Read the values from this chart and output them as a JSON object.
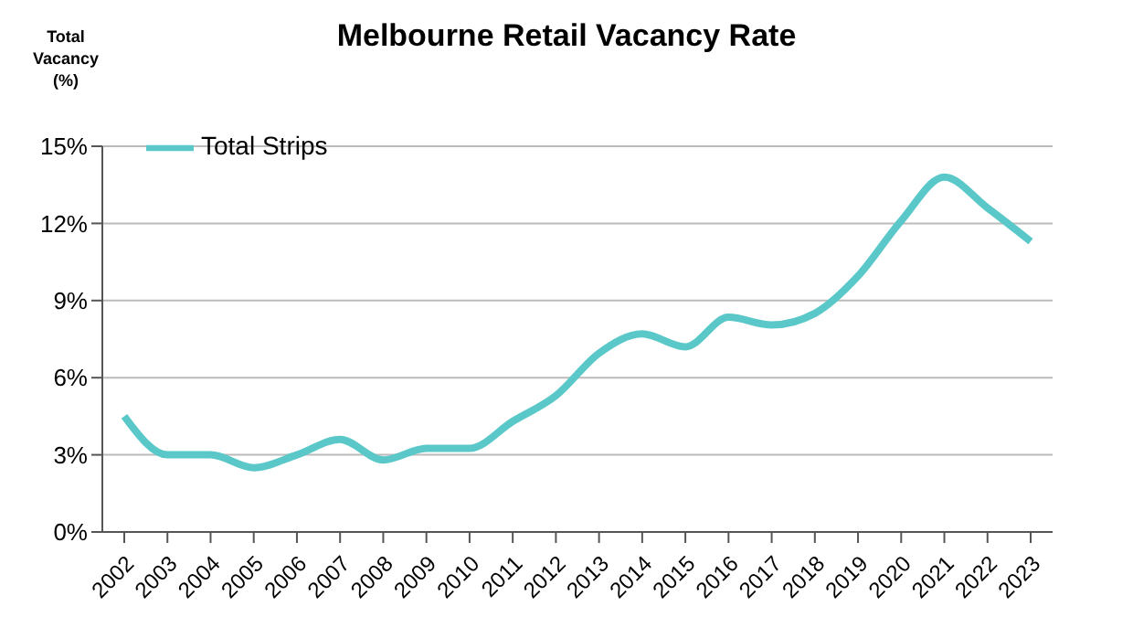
{
  "chart_data": {
    "type": "line",
    "title": "Melbourne Retail Vacancy Rate",
    "ylabel": "Total Vacancy (%)",
    "categories": [
      "2002",
      "2003",
      "2004",
      "2005",
      "2006",
      "2007",
      "2008",
      "2009",
      "2010",
      "2011",
      "2012",
      "2013",
      "2014",
      "2015",
      "2016",
      "2017",
      "2018",
      "2019",
      "2020",
      "2021",
      "2022",
      "2023"
    ],
    "series": [
      {
        "name": "Total Strips",
        "color": "#5ac8c8",
        "values": [
          4.5,
          3.0,
          3.0,
          2.5,
          3.0,
          3.6,
          2.8,
          3.25,
          3.25,
          4.3,
          5.3,
          6.95,
          7.7,
          7.2,
          8.35,
          8.05,
          8.5,
          9.95,
          12.1,
          13.8,
          12.6,
          11.3
        ]
      }
    ],
    "ylim": [
      0,
      15
    ],
    "yticks": [
      {
        "value": 0,
        "label": "0%"
      },
      {
        "value": 3,
        "label": "3%"
      },
      {
        "value": 6,
        "label": "6%"
      },
      {
        "value": 9,
        "label": "9%"
      },
      {
        "value": 12,
        "label": "12%"
      },
      {
        "value": 15,
        "label": "15%"
      }
    ],
    "grid": "y",
    "legend": "top left",
    "marker": "none",
    "line_style": "solid"
  }
}
